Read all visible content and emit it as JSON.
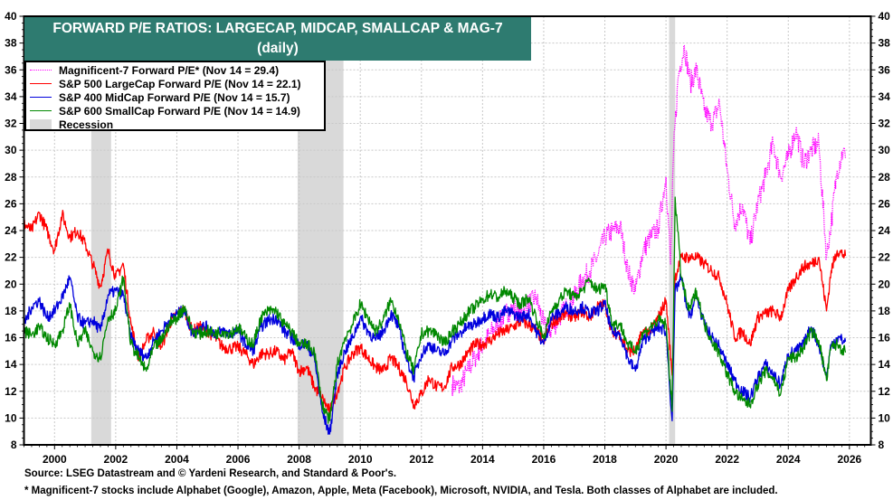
{
  "chart_data": {
    "type": "line",
    "title": "FORWARD P/E RATIOS: LARGECAP, MIDCAP, SMALLCAP & MAG-7",
    "subtitle": "(daily)",
    "xlabel": "",
    "ylabel": "",
    "xlim": [
      1999.0,
      2026.7
    ],
    "ylim": [
      8,
      40
    ],
    "x_ticks": [
      2000,
      2002,
      2004,
      2006,
      2008,
      2010,
      2012,
      2014,
      2016,
      2018,
      2020,
      2022,
      2024,
      2026
    ],
    "y_ticks": [
      8,
      10,
      12,
      14,
      16,
      18,
      20,
      22,
      24,
      26,
      28,
      30,
      32,
      34,
      36,
      38,
      40
    ],
    "grid": true,
    "legend_position": "top-left",
    "recessions": [
      {
        "start": 2001.2,
        "end": 2001.85
      },
      {
        "start": 2007.95,
        "end": 2009.45
      },
      {
        "start": 2020.1,
        "end": 2020.3
      }
    ],
    "series": [
      {
        "name": "Magnificent-7 Forward P/E* (Nov 14 = 29.4)",
        "color": "#ff00ff",
        "style": "dotted",
        "x": [
          2013.0,
          2013.25,
          2013.5,
          2013.75,
          2014.0,
          2014.25,
          2014.5,
          2014.75,
          2015.0,
          2015.25,
          2015.5,
          2015.75,
          2016.0,
          2016.25,
          2016.5,
          2016.75,
          2017.0,
          2017.25,
          2017.5,
          2017.75,
          2018.0,
          2018.25,
          2018.5,
          2018.75,
          2019.0,
          2019.25,
          2019.5,
          2019.75,
          2020.0,
          2020.15,
          2020.25,
          2020.4,
          2020.6,
          2020.8,
          2021.0,
          2021.25,
          2021.5,
          2021.75,
          2022.0,
          2022.25,
          2022.5,
          2022.75,
          2023.0,
          2023.25,
          2023.5,
          2023.75,
          2024.0,
          2024.25,
          2024.5,
          2024.75,
          2025.0,
          2025.25,
          2025.4,
          2025.6,
          2025.8,
          2025.87
        ],
        "y": [
          12.5,
          12.3,
          13.5,
          14.5,
          15.5,
          16.3,
          17.0,
          17.8,
          18.2,
          17.8,
          18.5,
          19.0,
          17.0,
          16.5,
          17.5,
          18.3,
          19.0,
          20.3,
          21.0,
          22.0,
          23.5,
          24.0,
          24.3,
          21.0,
          19.5,
          22.5,
          23.5,
          24.2,
          28.0,
          21.5,
          30.0,
          35.5,
          37.8,
          35.0,
          36.0,
          33.0,
          32.0,
          33.5,
          28.5,
          24.5,
          26.0,
          23.0,
          26.0,
          28.0,
          30.5,
          28.0,
          29.5,
          31.5,
          29.0,
          30.0,
          30.5,
          22.0,
          24.5,
          28.5,
          30.0,
          29.4
        ]
      },
      {
        "name": "S&P 500 LargeCap Forward P/E (Nov 14 = 22.1)",
        "color": "#ff0000",
        "style": "solid",
        "x": [
          1999.0,
          1999.25,
          1999.5,
          1999.75,
          2000.0,
          2000.25,
          2000.5,
          2000.75,
          2001.0,
          2001.25,
          2001.5,
          2001.75,
          2002.0,
          2002.25,
          2002.5,
          2002.75,
          2003.0,
          2003.25,
          2003.5,
          2003.75,
          2004.0,
          2004.25,
          2004.5,
          2004.75,
          2005.0,
          2005.25,
          2005.5,
          2005.75,
          2006.0,
          2006.25,
          2006.5,
          2006.75,
          2007.0,
          2007.25,
          2007.5,
          2007.75,
          2008.0,
          2008.25,
          2008.5,
          2008.75,
          2009.0,
          2009.25,
          2009.5,
          2009.75,
          2010.0,
          2010.25,
          2010.5,
          2010.75,
          2011.0,
          2011.25,
          2011.5,
          2011.75,
          2012.0,
          2012.25,
          2012.5,
          2012.75,
          2013.0,
          2013.25,
          2013.5,
          2013.75,
          2014.0,
          2014.25,
          2014.5,
          2014.75,
          2015.0,
          2015.25,
          2015.5,
          2015.75,
          2016.0,
          2016.25,
          2016.5,
          2016.75,
          2017.0,
          2017.25,
          2017.5,
          2017.75,
          2018.0,
          2018.25,
          2018.5,
          2018.75,
          2019.0,
          2019.25,
          2019.5,
          2019.75,
          2020.0,
          2020.2,
          2020.3,
          2020.5,
          2020.75,
          2021.0,
          2021.25,
          2021.5,
          2021.75,
          2022.0,
          2022.25,
          2022.5,
          2022.75,
          2023.0,
          2023.25,
          2023.5,
          2023.75,
          2024.0,
          2024.25,
          2024.5,
          2024.75,
          2025.0,
          2025.25,
          2025.4,
          2025.6,
          2025.87
        ],
        "y": [
          24.5,
          24.0,
          25.3,
          24.0,
          22.5,
          25.2,
          23.5,
          24.0,
          23.0,
          21.5,
          19.8,
          22.5,
          20.5,
          21.5,
          17.0,
          14.5,
          15.8,
          16.5,
          15.3,
          17.0,
          17.8,
          18.0,
          16.5,
          16.8,
          16.5,
          16.0,
          15.3,
          15.2,
          15.3,
          14.8,
          14.0,
          14.8,
          14.8,
          15.0,
          14.3,
          15.0,
          13.5,
          13.8,
          12.3,
          11.5,
          10.5,
          12.0,
          13.8,
          14.8,
          15.3,
          14.5,
          13.8,
          13.5,
          14.5,
          13.8,
          12.8,
          11.0,
          11.8,
          13.0,
          12.3,
          12.3,
          13.8,
          14.0,
          14.8,
          15.5,
          15.5,
          15.8,
          16.3,
          16.5,
          16.8,
          17.2,
          17.0,
          16.5,
          15.8,
          17.0,
          17.5,
          17.8,
          17.5,
          18.0,
          17.5,
          18.3,
          18.5,
          16.3,
          16.3,
          15.0,
          15.0,
          16.5,
          16.5,
          17.5,
          18.8,
          13.2,
          20.5,
          22.0,
          22.0,
          22.0,
          21.5,
          21.0,
          20.5,
          18.5,
          16.0,
          16.5,
          15.5,
          17.5,
          17.8,
          18.0,
          17.5,
          19.5,
          20.5,
          21.3,
          21.5,
          22.0,
          18.0,
          21.0,
          22.5,
          22.1
        ]
      },
      {
        "name": "S&P 400 MidCap Forward P/E (Nov 14 = 15.7)",
        "color": "#0000dd",
        "style": "solid",
        "x": [
          1999.0,
          1999.25,
          1999.5,
          1999.75,
          2000.0,
          2000.25,
          2000.5,
          2000.75,
          2001.0,
          2001.25,
          2001.5,
          2001.75,
          2002.0,
          2002.25,
          2002.5,
          2002.75,
          2003.0,
          2003.25,
          2003.5,
          2003.75,
          2004.0,
          2004.25,
          2004.5,
          2004.75,
          2005.0,
          2005.25,
          2005.5,
          2005.75,
          2006.0,
          2006.25,
          2006.5,
          2006.75,
          2007.0,
          2007.25,
          2007.5,
          2007.75,
          2008.0,
          2008.25,
          2008.5,
          2008.75,
          2009.0,
          2009.25,
          2009.5,
          2009.75,
          2010.0,
          2010.25,
          2010.5,
          2010.75,
          2011.0,
          2011.25,
          2011.5,
          2011.75,
          2012.0,
          2012.25,
          2012.5,
          2012.75,
          2013.0,
          2013.25,
          2013.5,
          2013.75,
          2014.0,
          2014.25,
          2014.5,
          2014.75,
          2015.0,
          2015.25,
          2015.5,
          2015.75,
          2016.0,
          2016.25,
          2016.5,
          2016.75,
          2017.0,
          2017.25,
          2017.5,
          2017.75,
          2018.0,
          2018.25,
          2018.5,
          2018.75,
          2019.0,
          2019.25,
          2019.5,
          2019.75,
          2020.0,
          2020.2,
          2020.3,
          2020.5,
          2020.75,
          2021.0,
          2021.25,
          2021.5,
          2021.75,
          2022.0,
          2022.25,
          2022.5,
          2022.75,
          2023.0,
          2023.25,
          2023.5,
          2023.75,
          2024.0,
          2024.25,
          2024.5,
          2024.75,
          2025.0,
          2025.25,
          2025.4,
          2025.6,
          2025.87
        ],
        "y": [
          17.0,
          18.3,
          18.8,
          17.5,
          18.0,
          19.0,
          20.5,
          17.5,
          17.0,
          17.3,
          16.5,
          19.2,
          19.5,
          19.2,
          16.0,
          15.0,
          14.5,
          15.8,
          16.5,
          17.3,
          17.8,
          18.0,
          16.3,
          16.8,
          16.8,
          16.3,
          16.5,
          16.3,
          16.5,
          15.5,
          15.0,
          16.8,
          17.3,
          17.5,
          16.5,
          16.0,
          15.5,
          15.5,
          14.5,
          10.5,
          8.8,
          13.3,
          15.0,
          16.0,
          17.5,
          16.5,
          15.8,
          16.5,
          17.8,
          16.8,
          14.5,
          13.0,
          14.8,
          15.5,
          15.0,
          14.8,
          15.8,
          16.3,
          16.8,
          17.0,
          17.5,
          17.8,
          17.5,
          18.0,
          17.8,
          17.5,
          17.8,
          16.5,
          15.5,
          17.5,
          17.8,
          18.3,
          18.0,
          18.3,
          17.8,
          18.0,
          18.5,
          16.3,
          16.3,
          14.5,
          13.5,
          15.8,
          16.3,
          16.8,
          16.5,
          9.8,
          19.5,
          20.5,
          17.5,
          19.0,
          17.0,
          16.0,
          15.3,
          14.0,
          12.8,
          12.0,
          11.5,
          13.0,
          14.0,
          13.3,
          12.5,
          14.8,
          15.0,
          15.5,
          16.8,
          15.5,
          13.0,
          15.5,
          16.0,
          15.7
        ]
      },
      {
        "name": "S&P 600 SmallCap Forward P/E (Nov 14 = 14.9)",
        "color": "#008800",
        "style": "solid",
        "x": [
          1999.0,
          1999.25,
          1999.5,
          1999.75,
          2000.0,
          2000.25,
          2000.5,
          2000.75,
          2001.0,
          2001.25,
          2001.5,
          2001.75,
          2002.0,
          2002.25,
          2002.5,
          2002.75,
          2003.0,
          2003.25,
          2003.5,
          2003.75,
          2004.0,
          2004.25,
          2004.5,
          2004.75,
          2005.0,
          2005.25,
          2005.5,
          2005.75,
          2006.0,
          2006.25,
          2006.5,
          2006.75,
          2007.0,
          2007.25,
          2007.5,
          2007.75,
          2008.0,
          2008.25,
          2008.5,
          2008.75,
          2009.0,
          2009.25,
          2009.5,
          2009.75,
          2010.0,
          2010.25,
          2010.5,
          2010.75,
          2011.0,
          2011.25,
          2011.5,
          2011.75,
          2012.0,
          2012.25,
          2012.5,
          2012.75,
          2013.0,
          2013.25,
          2013.5,
          2013.75,
          2014.0,
          2014.25,
          2014.5,
          2014.75,
          2015.0,
          2015.25,
          2015.5,
          2015.75,
          2016.0,
          2016.25,
          2016.5,
          2016.75,
          2017.0,
          2017.25,
          2017.5,
          2017.75,
          2018.0,
          2018.25,
          2018.5,
          2018.75,
          2019.0,
          2019.25,
          2019.5,
          2019.75,
          2020.0,
          2020.2,
          2020.3,
          2020.5,
          2020.75,
          2021.0,
          2021.25,
          2021.5,
          2021.75,
          2022.0,
          2022.25,
          2022.5,
          2022.75,
          2023.0,
          2023.25,
          2023.5,
          2023.75,
          2024.0,
          2024.25,
          2024.5,
          2024.75,
          2025.0,
          2025.25,
          2025.4,
          2025.6,
          2025.87
        ],
        "y": [
          16.5,
          16.2,
          16.8,
          16.0,
          15.5,
          16.5,
          18.5,
          15.5,
          16.5,
          15.0,
          14.5,
          17.5,
          18.0,
          20.5,
          15.5,
          14.5,
          13.5,
          15.3,
          15.8,
          17.0,
          17.5,
          18.3,
          16.5,
          16.3,
          16.5,
          16.3,
          16.5,
          16.3,
          16.8,
          16.0,
          15.5,
          17.5,
          18.0,
          18.0,
          17.0,
          16.5,
          15.5,
          15.5,
          15.0,
          11.0,
          9.8,
          14.0,
          16.0,
          17.0,
          18.5,
          17.5,
          16.5,
          17.3,
          18.8,
          17.5,
          15.0,
          13.5,
          16.3,
          16.5,
          16.3,
          15.5,
          16.5,
          17.0,
          17.8,
          18.3,
          18.8,
          19.3,
          19.0,
          19.5,
          19.0,
          18.5,
          19.0,
          17.5,
          16.0,
          18.0,
          18.8,
          19.5,
          19.0,
          19.5,
          20.3,
          19.5,
          20.0,
          17.0,
          17.0,
          15.5,
          15.0,
          16.3,
          16.8,
          17.3,
          17.0,
          10.5,
          26.5,
          20.5,
          18.0,
          19.5,
          17.0,
          15.8,
          14.8,
          13.3,
          12.0,
          11.3,
          11.0,
          12.5,
          13.5,
          13.0,
          11.8,
          14.5,
          14.5,
          15.3,
          16.5,
          15.8,
          12.8,
          15.3,
          15.5,
          14.9
        ]
      }
    ]
  },
  "header": {
    "title_line1": "FORWARD P/E RATIOS: LARGECAP, MIDCAP, SMALLCAP & MAG-7",
    "title_line2": "(daily)",
    "banner_color": "#2e7b70"
  },
  "legend": {
    "items": [
      {
        "label": "Magnificent-7 Forward P/E* (Nov 14 = 29.4)",
        "color": "#ff00ff",
        "style": "dotted"
      },
      {
        "label": "S&P 500 LargeCap Forward P/E (Nov 14 = 22.1)",
        "color": "#ff0000",
        "style": "solid"
      },
      {
        "label": "S&P 400 MidCap Forward P/E (Nov 14 = 15.7)",
        "color": "#0000dd",
        "style": "solid"
      },
      {
        "label": "S&P 600 SmallCap Forward P/E (Nov 14 = 14.9)",
        "color": "#008800",
        "style": "solid"
      },
      {
        "label": "Recession",
        "color": "#d9d9d9",
        "style": "box"
      }
    ]
  },
  "footer": {
    "source": "Source: LSEG Datastream and © Yardeni Research, and Standard & Poor's.",
    "note": "* Magnificent-7 stocks include Alphabet (Google), Amazon, Apple, Meta (Facebook), Microsoft, NVIDIA, and Tesla. Both classes of Alphabet are included."
  }
}
